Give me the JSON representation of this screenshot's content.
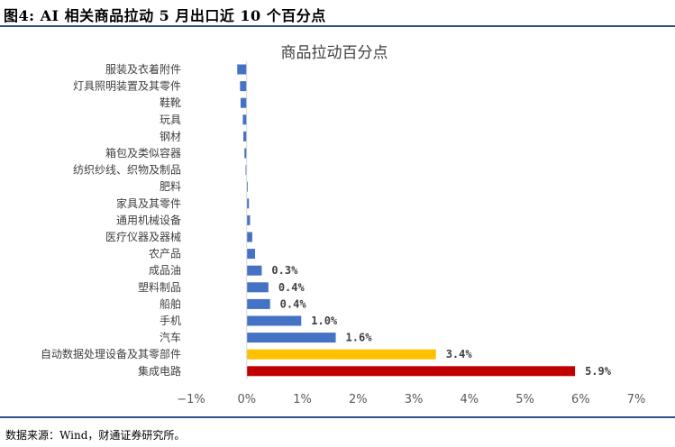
{
  "figure": {
    "title": "图4: AI 相关商品拉动 5 月出口近 10 个百分点",
    "source": "数据来源：Wind，财通证券研究所。"
  },
  "chart_data": {
    "type": "bar",
    "orientation": "horizontal",
    "title": "商品拉动百分点",
    "xlabel": "",
    "ylabel": "",
    "xlim": [
      -1,
      7
    ],
    "x_ticks": [
      -1,
      0,
      1,
      2,
      3,
      4,
      5,
      6,
      7
    ],
    "x_tick_labels": [
      "−1%",
      "0%",
      "1%",
      "2%",
      "3%",
      "4%",
      "5%",
      "6%",
      "7%"
    ],
    "grid": false,
    "categories": [
      "服装及衣着附件",
      "灯具照明装置及其零件",
      "鞋靴",
      "玩具",
      "钢材",
      "箱包及类似容器",
      "纺织纱线、织物及制品",
      "肥料",
      "家具及其零件",
      "通用机械设备",
      "医疗仪器及器械",
      "农产品",
      "成品油",
      "塑料制品",
      "船舶",
      "手机",
      "汽车",
      "自动数据处理设备及其零部件",
      "集成电路"
    ],
    "values": [
      -0.17,
      -0.12,
      -0.11,
      -0.07,
      -0.06,
      -0.04,
      -0.02,
      0.02,
      0.04,
      0.06,
      0.1,
      0.15,
      0.27,
      0.39,
      0.42,
      0.98,
      1.6,
      3.4,
      5.9
    ],
    "data_labels": [
      "",
      "",
      "",
      "",
      "",
      "",
      "",
      "",
      "",
      "",
      "",
      "",
      "0.3%",
      "0.4%",
      "0.4%",
      "1.0%",
      "1.6%",
      "3.4%",
      "5.9%"
    ],
    "colors": [
      "#4472c4",
      "#4472c4",
      "#4472c4",
      "#4472c4",
      "#4472c4",
      "#4472c4",
      "#4472c4",
      "#4472c4",
      "#4472c4",
      "#4472c4",
      "#4472c4",
      "#4472c4",
      "#4472c4",
      "#4472c4",
      "#4472c4",
      "#4472c4",
      "#4472c4",
      "#ffc000",
      "#c00000"
    ]
  }
}
